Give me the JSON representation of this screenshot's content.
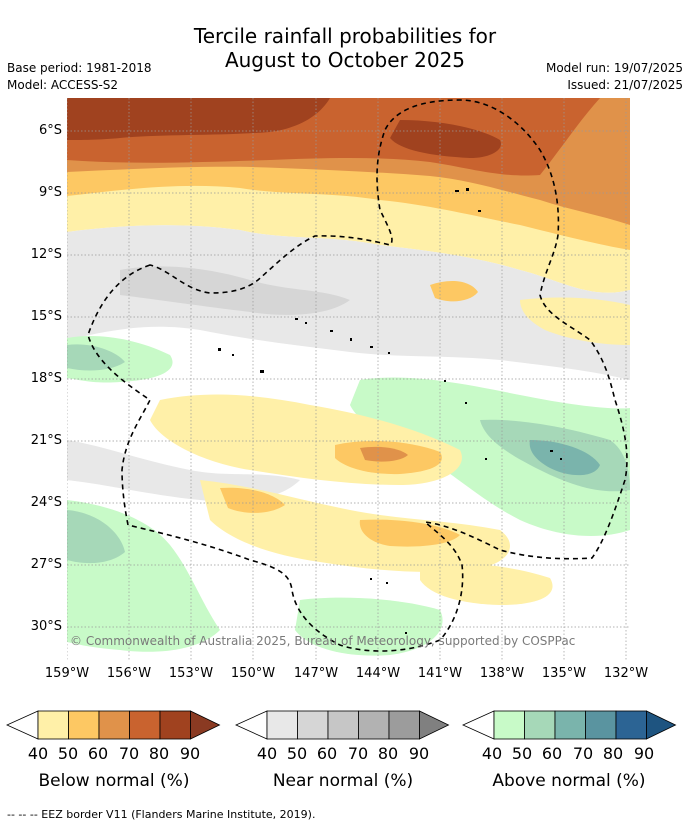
{
  "header": {
    "title_line1": "Tercile rainfall probabilities for",
    "title_line2": "August to October 2025",
    "base_period": "Base period: 1981-2018",
    "model": "Model: ACCESS-S2",
    "model_run": "Model run: 19/07/2025",
    "issued": "Issued: 21/07/2025"
  },
  "map": {
    "latitude_ticks": [
      "6°S",
      "9°S",
      "12°S",
      "15°S",
      "18°S",
      "21°S",
      "24°S",
      "27°S",
      "30°S"
    ],
    "longitude_ticks": [
      "159°W",
      "156°W",
      "153°W",
      "150°W",
      "147°W",
      "144°W",
      "141°W",
      "138°W",
      "135°W",
      "132°W"
    ],
    "copyright": "© Commonwealth of Australia 2025, Bureau of Meteorology, supported by COSPPac",
    "gridlines": true
  },
  "legend": {
    "groups": [
      {
        "label": "Below normal (%)",
        "ticks": [
          "40",
          "50",
          "60",
          "70",
          "80",
          "90"
        ],
        "colors": [
          "#fff0a8",
          "#fdc863",
          "#e0924a",
          "#c9632f",
          "#a0421f"
        ],
        "arrow_color": "#8a3a22"
      },
      {
        "label": "Near normal (%)",
        "ticks": [
          "40",
          "50",
          "60",
          "70",
          "80",
          "90"
        ],
        "colors": [
          "#e8e8e8",
          "#d6d6d6",
          "#c6c6c6",
          "#b2b2b2",
          "#9c9c9c"
        ],
        "arrow_color": "#808080"
      },
      {
        "label": "Above normal (%)",
        "ticks": [
          "40",
          "50",
          "60",
          "70",
          "80",
          "90"
        ],
        "colors": [
          "#c8fac8",
          "#a6d8b8",
          "#7ab4ac",
          "#5a94a0",
          "#2c6494"
        ],
        "arrow_color": "#1e5480"
      }
    ]
  },
  "footer": {
    "eez_note": "--  --  -- EEZ border V11 (Flanders Marine Institute, 2019)."
  }
}
